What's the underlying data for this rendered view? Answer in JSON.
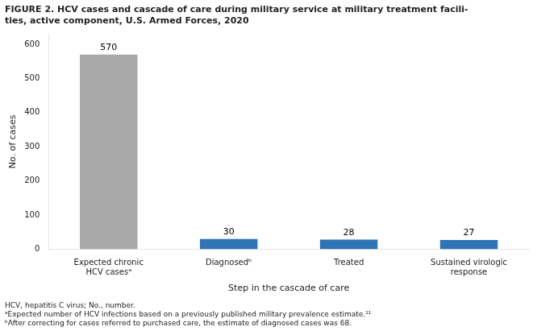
{
  "chart_data": {
    "type": "bar",
    "title": "FIGURE 2. HCV cases and cascade of care during military service at military treatment facili-\nties, active component, U.S. Armed Forces, 2020",
    "categories": [
      "Expected chronic\nHCV casesᵃ",
      "Diagnosedᵇ",
      "Treated",
      "Sustained virologic\nresponse"
    ],
    "values": [
      570,
      30,
      28,
      27
    ],
    "colors": [
      "#a9a9a9",
      "#2e75b6",
      "#2e75b6",
      "#2e75b6"
    ],
    "xlabel": "Step in the cascade of care",
    "ylabel": "No. of cases",
    "ylim": [
      0,
      630
    ],
    "yticks": [
      0,
      100,
      200,
      300,
      400,
      500,
      600
    ],
    "grid": false,
    "data_labels": true,
    "annotations": [
      "HCV, hepatitis C virus; No., number.",
      "ᵃExpected number of HCV infections based on a previously published military prevalence estimate.¹¹",
      "ᵇAfter correcting for cases referred to purchased care, the estimate of diagnosed cases was 68."
    ]
  }
}
